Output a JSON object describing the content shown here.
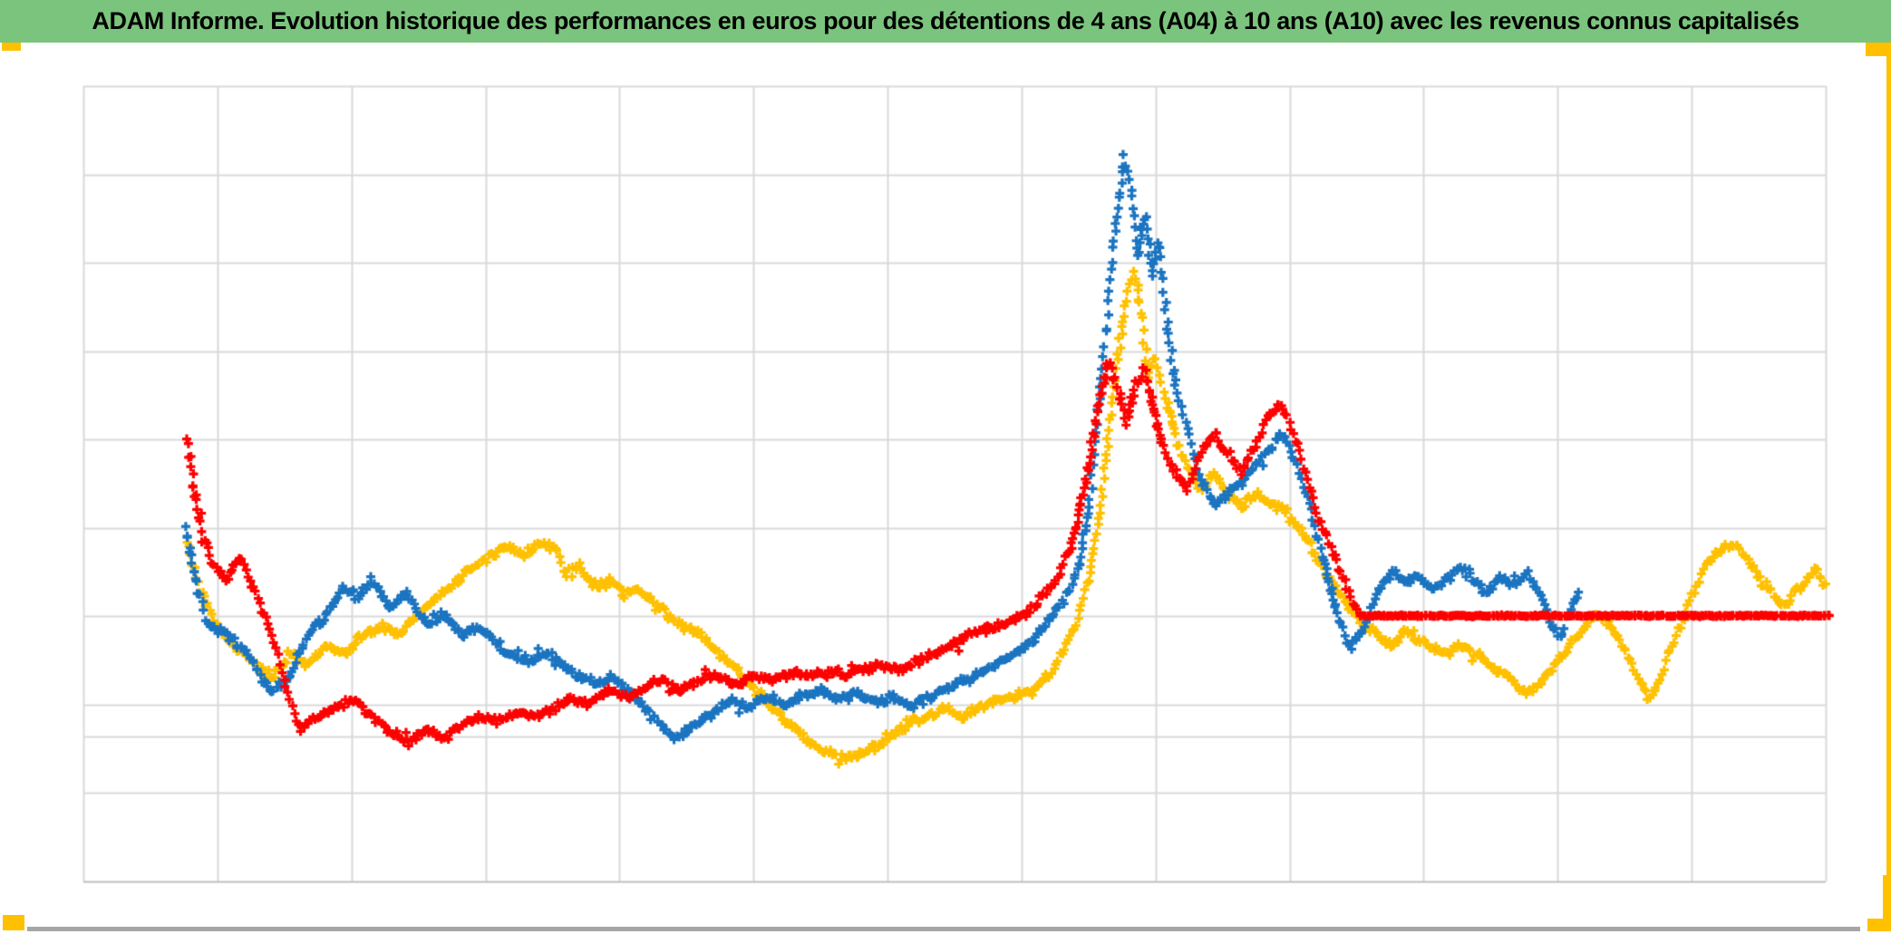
{
  "title_bar": {
    "text": "ADAM Informe. Evolution historique des performances en euros pour des détentions de 4 ans (A04) à 10 ans (A10) avec les revenus connus capitalisés",
    "bg_color": "#7BC47D",
    "text_color": "#000000"
  },
  "accents": {
    "selection_handle_color": "#FFC000",
    "bottom_edge_color": "#A6A6A6"
  },
  "chart_data": {
    "type": "scatter",
    "title": "ADAM Informe. Evolution historique des performances en euros pour des détentions de 4 ans (A04) à 10 ans (A10) avec les revenus connus capitalisés",
    "marker": "plus",
    "legend": "none",
    "axes": {
      "x_tick_labels_visible": false,
      "y_tick_labels_visible": false,
      "v_gridline_columns": 13,
      "h_gridline_rows": 9,
      "extra_hline_fraction_from_bottom": 0.182,
      "gridline_color": "#D9D9D9",
      "plot_border_color": "#D9D9D9",
      "bottom_border_color": "#BFBFBF"
    },
    "coord_note": "points are [x,y(,band_halfwidth_px)] normalized to the plot area; x: 0=left edge, 1=right edge; y: 0=bottom, 1=top",
    "series": [
      {
        "name": "series-yellow",
        "color": "#FFC000",
        "points": [
          [
            0.059,
            0.425
          ],
          [
            0.067,
            0.368
          ],
          [
            0.077,
            0.32
          ],
          [
            0.087,
            0.297
          ],
          [
            0.098,
            0.274
          ],
          [
            0.108,
            0.256
          ],
          [
            0.119,
            0.286
          ],
          [
            0.129,
            0.274
          ],
          [
            0.139,
            0.297
          ],
          [
            0.15,
            0.286
          ],
          [
            0.16,
            0.309
          ],
          [
            0.171,
            0.32
          ],
          [
            0.181,
            0.311
          ],
          [
            0.191,
            0.331
          ],
          [
            0.202,
            0.354
          ],
          [
            0.212,
            0.374
          ],
          [
            0.223,
            0.393
          ],
          [
            0.233,
            0.408
          ],
          [
            0.243,
            0.419
          ],
          [
            0.254,
            0.411
          ],
          [
            0.264,
            0.425
          ],
          [
            0.271,
            0.416
          ],
          [
            0.277,
            0.388
          ],
          [
            0.285,
            0.396
          ],
          [
            0.293,
            0.37
          ],
          [
            0.301,
            0.381
          ],
          [
            0.309,
            0.362
          ],
          [
            0.316,
            0.37
          ],
          [
            0.326,
            0.354
          ],
          [
            0.335,
            0.336
          ],
          [
            0.344,
            0.322
          ],
          [
            0.354,
            0.311
          ],
          [
            0.363,
            0.29
          ],
          [
            0.374,
            0.268
          ],
          [
            0.384,
            0.245
          ],
          [
            0.394,
            0.222
          ],
          [
            0.405,
            0.199
          ],
          [
            0.415,
            0.18
          ],
          [
            0.426,
            0.165
          ],
          [
            0.436,
            0.156
          ],
          [
            0.445,
            0.159
          ],
          [
            0.455,
            0.17
          ],
          [
            0.464,
            0.183
          ],
          [
            0.473,
            0.197
          ],
          [
            0.484,
            0.206
          ],
          [
            0.494,
            0.218
          ],
          [
            0.505,
            0.208
          ],
          [
            0.515,
            0.22
          ],
          [
            0.525,
            0.227
          ],
          [
            0.536,
            0.233
          ],
          [
            0.546,
            0.245
          ],
          [
            0.555,
            0.263
          ],
          [
            0.562,
            0.288
          ],
          [
            0.569,
            0.32
          ],
          [
            0.577,
            0.379
          ],
          [
            0.583,
            0.47
          ],
          [
            0.588,
            0.561
          ],
          [
            0.593,
            0.653
          ],
          [
            0.598,
            0.732
          ],
          [
            0.603,
            0.769
          ],
          [
            0.607,
            0.712
          ],
          [
            0.611,
            0.63
          ],
          [
            0.615,
            0.662
          ],
          [
            0.621,
            0.609
          ],
          [
            0.626,
            0.564
          ],
          [
            0.634,
            0.518
          ],
          [
            0.641,
            0.491
          ],
          [
            0.649,
            0.514
          ],
          [
            0.657,
            0.486
          ],
          [
            0.665,
            0.47
          ],
          [
            0.673,
            0.491
          ],
          [
            0.68,
            0.475
          ],
          [
            0.688,
            0.468
          ],
          [
            0.696,
            0.448
          ],
          [
            0.704,
            0.425
          ],
          [
            0.712,
            0.391
          ],
          [
            0.719,
            0.368
          ],
          [
            0.727,
            0.345
          ],
          [
            0.735,
            0.322
          ],
          [
            0.743,
            0.311
          ],
          [
            0.751,
            0.297
          ],
          [
            0.759,
            0.314
          ],
          [
            0.766,
            0.303
          ],
          [
            0.774,
            0.293
          ],
          [
            0.782,
            0.286
          ],
          [
            0.79,
            0.297
          ],
          [
            0.798,
            0.286
          ],
          [
            0.805,
            0.274
          ],
          [
            0.813,
            0.263
          ],
          [
            0.821,
            0.252
          ],
          [
            0.828,
            0.238
          ],
          [
            0.834,
            0.245
          ],
          [
            0.841,
            0.261
          ],
          [
            0.848,
            0.281
          ],
          [
            0.855,
            0.304
          ],
          [
            0.862,
            0.32
          ],
          [
            0.868,
            0.336
          ],
          [
            0.874,
            0.325
          ],
          [
            0.881,
            0.309
          ],
          [
            0.887,
            0.279
          ],
          [
            0.893,
            0.252
          ],
          [
            0.898,
            0.233
          ],
          [
            0.903,
            0.245
          ],
          [
            0.909,
            0.281
          ],
          [
            0.916,
            0.318
          ],
          [
            0.922,
            0.354
          ],
          [
            0.928,
            0.384
          ],
          [
            0.934,
            0.404
          ],
          [
            0.941,
            0.418
          ],
          [
            0.947,
            0.423
          ],
          [
            0.954,
            0.411
          ],
          [
            0.96,
            0.388
          ],
          [
            0.967,
            0.368
          ],
          [
            0.972,
            0.354
          ],
          [
            0.977,
            0.347
          ],
          [
            0.982,
            0.361
          ],
          [
            0.988,
            0.377
          ],
          [
            0.995,
            0.391
          ],
          [
            1.0,
            0.372
          ]
        ]
      },
      {
        "name": "series-blue",
        "color": "#1B74C0",
        "points": [
          [
            0.059,
            0.442,
            8
          ],
          [
            0.064,
            0.379
          ],
          [
            0.072,
            0.322
          ],
          [
            0.082,
            0.311
          ],
          [
            0.093,
            0.288
          ],
          [
            0.108,
            0.237
          ],
          [
            0.119,
            0.26
          ],
          [
            0.129,
            0.311
          ],
          [
            0.139,
            0.334
          ],
          [
            0.149,
            0.37
          ],
          [
            0.158,
            0.356
          ],
          [
            0.165,
            0.381
          ],
          [
            0.176,
            0.343
          ],
          [
            0.186,
            0.362
          ],
          [
            0.197,
            0.322
          ],
          [
            0.207,
            0.336
          ],
          [
            0.217,
            0.309
          ],
          [
            0.228,
            0.32
          ],
          [
            0.241,
            0.29
          ],
          [
            0.254,
            0.277
          ],
          [
            0.267,
            0.286
          ],
          [
            0.28,
            0.263
          ],
          [
            0.293,
            0.247
          ],
          [
            0.305,
            0.256
          ],
          [
            0.316,
            0.231
          ],
          [
            0.328,
            0.206
          ],
          [
            0.34,
            0.177
          ],
          [
            0.35,
            0.197
          ],
          [
            0.361,
            0.211
          ],
          [
            0.371,
            0.229
          ],
          [
            0.381,
            0.218
          ],
          [
            0.392,
            0.233
          ],
          [
            0.402,
            0.222
          ],
          [
            0.413,
            0.231
          ],
          [
            0.423,
            0.24
          ],
          [
            0.433,
            0.229
          ],
          [
            0.444,
            0.238
          ],
          [
            0.454,
            0.224
          ],
          [
            0.465,
            0.231
          ],
          [
            0.475,
            0.22
          ],
          [
            0.485,
            0.229
          ],
          [
            0.496,
            0.243
          ],
          [
            0.506,
            0.254
          ],
          [
            0.517,
            0.265
          ],
          [
            0.527,
            0.277
          ],
          [
            0.537,
            0.29
          ],
          [
            0.548,
            0.311
          ],
          [
            0.557,
            0.336
          ],
          [
            0.565,
            0.362
          ],
          [
            0.571,
            0.393
          ],
          [
            0.577,
            0.47
          ],
          [
            0.582,
            0.59
          ],
          [
            0.587,
            0.709
          ],
          [
            0.592,
            0.823
          ],
          [
            0.597,
            0.909
          ],
          [
            0.601,
            0.875
          ],
          [
            0.605,
            0.784
          ],
          [
            0.609,
            0.844
          ],
          [
            0.613,
            0.766
          ],
          [
            0.617,
            0.81
          ],
          [
            0.621,
            0.715
          ],
          [
            0.626,
            0.63
          ],
          [
            0.634,
            0.564
          ],
          [
            0.641,
            0.505
          ],
          [
            0.649,
            0.473
          ],
          [
            0.66,
            0.493
          ],
          [
            0.67,
            0.514
          ],
          [
            0.68,
            0.541
          ],
          [
            0.688,
            0.564
          ],
          [
            0.696,
            0.527
          ],
          [
            0.704,
            0.473
          ],
          [
            0.712,
            0.404
          ],
          [
            0.719,
            0.336
          ],
          [
            0.727,
            0.294
          ],
          [
            0.735,
            0.32
          ],
          [
            0.743,
            0.366
          ],
          [
            0.751,
            0.388
          ],
          [
            0.759,
            0.374
          ],
          [
            0.766,
            0.385
          ],
          [
            0.774,
            0.368
          ],
          [
            0.782,
            0.379
          ],
          [
            0.79,
            0.394
          ],
          [
            0.798,
            0.379
          ],
          [
            0.805,
            0.362
          ],
          [
            0.813,
            0.384
          ],
          [
            0.821,
            0.372
          ],
          [
            0.829,
            0.388
          ],
          [
            0.837,
            0.356
          ],
          [
            0.843,
            0.322
          ],
          [
            0.848,
            0.309
          ],
          [
            0.853,
            0.343
          ],
          [
            0.858,
            0.361
          ]
        ]
      },
      {
        "name": "series-red",
        "color": "#FE0000",
        "points": [
          [
            0.059,
            0.561,
            9
          ],
          [
            0.062,
            0.505,
            9
          ],
          [
            0.068,
            0.442,
            8
          ],
          [
            0.074,
            0.402
          ],
          [
            0.082,
            0.379
          ],
          [
            0.09,
            0.408
          ],
          [
            0.098,
            0.368
          ],
          [
            0.108,
            0.311
          ],
          [
            0.116,
            0.245
          ],
          [
            0.124,
            0.191
          ],
          [
            0.134,
            0.208
          ],
          [
            0.145,
            0.218
          ],
          [
            0.155,
            0.229
          ],
          [
            0.165,
            0.208
          ],
          [
            0.176,
            0.188
          ],
          [
            0.187,
            0.177
          ],
          [
            0.197,
            0.19
          ],
          [
            0.207,
            0.18
          ],
          [
            0.217,
            0.197
          ],
          [
            0.228,
            0.206
          ],
          [
            0.239,
            0.202
          ],
          [
            0.25,
            0.213
          ],
          [
            0.26,
            0.206
          ],
          [
            0.271,
            0.22
          ],
          [
            0.281,
            0.229
          ],
          [
            0.291,
            0.224
          ],
          [
            0.302,
            0.24
          ],
          [
            0.312,
            0.231
          ],
          [
            0.323,
            0.243
          ],
          [
            0.333,
            0.252
          ],
          [
            0.343,
            0.24
          ],
          [
            0.354,
            0.254
          ],
          [
            0.364,
            0.26
          ],
          [
            0.375,
            0.247
          ],
          [
            0.385,
            0.259
          ],
          [
            0.395,
            0.252
          ],
          [
            0.406,
            0.263
          ],
          [
            0.416,
            0.257
          ],
          [
            0.427,
            0.265
          ],
          [
            0.437,
            0.259
          ],
          [
            0.447,
            0.268
          ],
          [
            0.458,
            0.272
          ],
          [
            0.468,
            0.265
          ],
          [
            0.479,
            0.277
          ],
          [
            0.489,
            0.286
          ],
          [
            0.499,
            0.297
          ],
          [
            0.51,
            0.311
          ],
          [
            0.52,
            0.318
          ],
          [
            0.531,
            0.325
          ],
          [
            0.541,
            0.336
          ],
          [
            0.551,
            0.359
          ],
          [
            0.559,
            0.382
          ],
          [
            0.566,
            0.416
          ],
          [
            0.572,
            0.473
          ],
          [
            0.578,
            0.541
          ],
          [
            0.583,
            0.607
          ],
          [
            0.588,
            0.655
          ],
          [
            0.593,
            0.63
          ],
          [
            0.598,
            0.575
          ],
          [
            0.603,
            0.621
          ],
          [
            0.609,
            0.643
          ],
          [
            0.614,
            0.596
          ],
          [
            0.619,
            0.548
          ],
          [
            0.626,
            0.516
          ],
          [
            0.634,
            0.493
          ],
          [
            0.641,
            0.541
          ],
          [
            0.649,
            0.564
          ],
          [
            0.657,
            0.536
          ],
          [
            0.665,
            0.514
          ],
          [
            0.673,
            0.55
          ],
          [
            0.68,
            0.587
          ],
          [
            0.687,
            0.602
          ],
          [
            0.693,
            0.571
          ],
          [
            0.701,
            0.516
          ],
          [
            0.709,
            0.457
          ],
          [
            0.717,
            0.416
          ],
          [
            0.723,
            0.382
          ],
          [
            0.728,
            0.354
          ],
          [
            0.733,
            0.334,
            1
          ],
          [
            1.003,
            0.334,
            1
          ]
        ]
      }
    ]
  }
}
